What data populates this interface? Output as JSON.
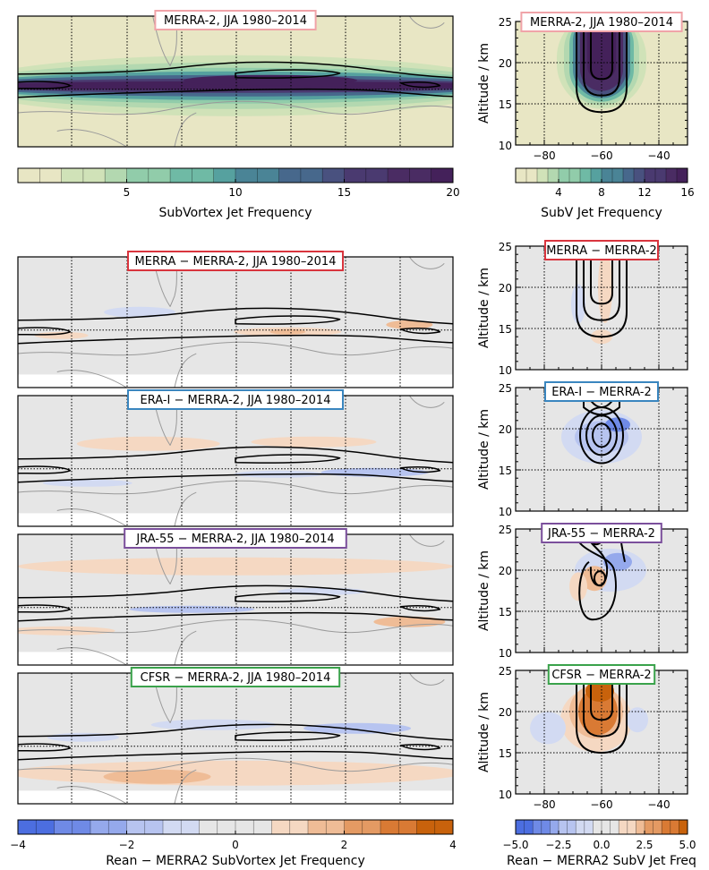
{
  "figure": {
    "background": "#ffffff"
  },
  "colorbars": {
    "top_left": {
      "label": "SubVortex Jet Frequency",
      "min": 0,
      "max": 20,
      "ticks": [
        "5",
        "10",
        "15",
        "20"
      ],
      "scale": "frequency"
    },
    "top_right": {
      "label": "SubV Jet Frequency",
      "min": 0,
      "max": 16,
      "ticks": [
        "4",
        "8",
        "12",
        "16"
      ],
      "scale": "frequency"
    },
    "bottom_left": {
      "label": "Rean − MERRA2 SubVortex Jet Frequency",
      "min": -4,
      "max": 4,
      "ticks": [
        "−4",
        "−2",
        "0",
        "2",
        "4"
      ],
      "scale": "difference"
    },
    "bottom_right": {
      "label": "Rean − MERRA2 SubV Jet Freq",
      "min": -5,
      "max": 5,
      "ticks": [
        "−5.0",
        "−2.5",
        "0.0",
        "2.5",
        "5.0"
      ],
      "scale": "difference"
    }
  },
  "colors": {
    "frequency": [
      "#e8e6c4",
      "#d0e2b8",
      "#b3d8b0",
      "#91ccaa",
      "#6fbaa5",
      "#56a19f",
      "#4a8496",
      "#47688c",
      "#49517f",
      "#4a3a70",
      "#4a2c63",
      "#44215a"
    ],
    "difference_neg": [
      "#4c6ee0",
      "#6f8ae6",
      "#95a9ec",
      "#b7c4f0",
      "#d2daf2"
    ],
    "difference_pos": [
      "#f5d8c2",
      "#efbc96",
      "#e49a63",
      "#d97a34",
      "#c8620c"
    ],
    "neutral": "#e6e6e6",
    "title_box": [
      "#f0a3a8",
      "#d9353e",
      "#3a86bf",
      "#7b4f9c",
      "#3aa24b"
    ]
  },
  "chart_data": [
    {
      "type": "heatmap",
      "panel": "map",
      "title": "MERRA-2, JJA 1980–2014",
      "variable": "SubVortex Jet Frequency",
      "range": [
        0,
        20
      ]
    },
    {
      "type": "heatmap",
      "panel": "altitude-longitude",
      "title": "MERRA-2, JJA 1980–2014",
      "ylabel": "Altitude / km",
      "yticks": [
        "10",
        "15",
        "20",
        "25"
      ],
      "ylim": [
        10,
        25
      ],
      "xlim": [
        -90,
        -30
      ],
      "xticks": [
        "−80",
        "−60",
        "−40"
      ]
    },
    {
      "type": "heatmap",
      "panel": "map",
      "title": "MERRA − MERRA-2, JJA 1980–2014"
    },
    {
      "type": "heatmap",
      "panel": "altitude-longitude",
      "title": "MERRA − MERRA-2",
      "ylabel": "Altitude / km",
      "yticks": [
        "10",
        "15",
        "20",
        "25"
      ],
      "ylim": [
        10,
        25
      ]
    },
    {
      "type": "heatmap",
      "panel": "map",
      "title": "ERA-I − MERRA-2, JJA 1980–2014"
    },
    {
      "type": "heatmap",
      "panel": "altitude-longitude",
      "title": "ERA-I − MERRA-2",
      "ylabel": "Altitude / km",
      "yticks": [
        "10",
        "15",
        "20",
        "25"
      ],
      "ylim": [
        10,
        25
      ]
    },
    {
      "type": "heatmap",
      "panel": "map",
      "title": "JRA-55 − MERRA-2, JJA 1980–2014"
    },
    {
      "type": "heatmap",
      "panel": "altitude-longitude",
      "title": "JRA-55 − MERRA-2",
      "ylabel": "Altitude / km",
      "yticks": [
        "10",
        "15",
        "20",
        "25"
      ],
      "ylim": [
        10,
        25
      ]
    },
    {
      "type": "heatmap",
      "panel": "map",
      "title": "CFSR − MERRA-2, JJA 1980–2014"
    },
    {
      "type": "heatmap",
      "panel": "altitude-longitude",
      "title": "CFSR − MERRA-2",
      "ylabel": "Altitude / km",
      "yticks": [
        "10",
        "15",
        "20",
        "25"
      ],
      "ylim": [
        10,
        25
      ],
      "xlim": [
        -90,
        -30
      ],
      "xticks": [
        "−80",
        "−60",
        "−40"
      ]
    }
  ]
}
